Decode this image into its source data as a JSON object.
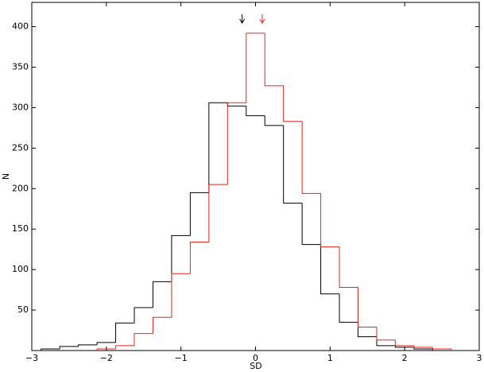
{
  "chart_data": {
    "type": "step-histogram",
    "x_label": "SD",
    "y_label": "N",
    "xlim": [
      -3,
      3
    ],
    "ylim": [
      0,
      430
    ],
    "xticks": [
      {
        "value": -3,
        "label": "−3"
      },
      {
        "value": -2,
        "label": "−2"
      },
      {
        "value": -1,
        "label": "−1"
      },
      0,
      1,
      2,
      3
    ],
    "yticks": [
      50,
      100,
      150,
      200,
      250,
      300,
      350,
      400
    ],
    "series": [
      {
        "color": "#000000",
        "bins": [
          -2.875,
          -2.625,
          -2.375,
          -2.125,
          -1.875,
          -1.625,
          -1.375,
          -1.125,
          -0.875,
          -0.625,
          -0.375,
          -0.125,
          0.125,
          0.375,
          0.625,
          0.875,
          1.125,
          1.375,
          1.625,
          1.875,
          2.125,
          2.375
        ],
        "values": [
          2,
          5,
          7,
          10,
          34,
          53,
          85,
          142,
          195,
          306,
          302,
          290,
          278,
          182,
          131,
          70,
          35,
          17,
          6,
          4,
          2
        ],
        "arrow_x": -0.18
      },
      {
        "color": "#e8251f",
        "bins": [
          -2.125,
          -1.875,
          -1.625,
          -1.375,
          -1.125,
          -0.875,
          -0.625,
          -0.375,
          -0.125,
          0.125,
          0.375,
          0.625,
          0.875,
          1.125,
          1.375,
          1.625,
          1.875,
          2.125,
          2.375,
          2.625
        ],
        "values": [
          2,
          6,
          21,
          41,
          95,
          134,
          205,
          306,
          392,
          327,
          283,
          194,
          128,
          78,
          29,
          13,
          6,
          4,
          2
        ],
        "arrow_x": 0.09
      }
    ]
  }
}
